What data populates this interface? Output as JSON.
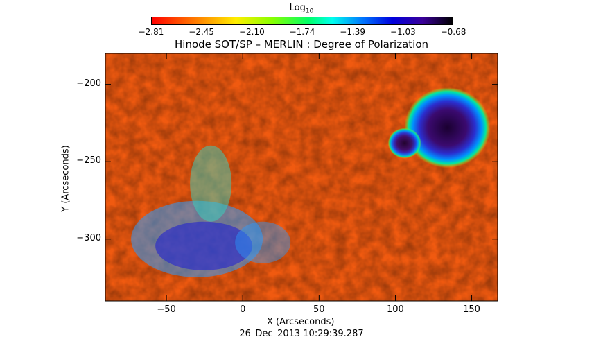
{
  "colorbar": {
    "title": "Log",
    "title_sub": "10",
    "ticks": [
      "−2.81",
      "−2.45",
      "−2.10",
      "−1.74",
      "−1.39",
      "−1.03",
      "−0.68"
    ]
  },
  "chart_data": {
    "type": "heatmap",
    "title": "Hinode SOT/SP – MERLIN : Degree of Polarization",
    "xlabel": "X (Arcseconds)",
    "ylabel": "Y (Arcseconds)",
    "xlim": [
      -90,
      167
    ],
    "ylim": [
      -340,
      -180
    ],
    "xticks": [
      -50,
      0,
      50,
      100,
      150
    ],
    "yticks": [
      -200,
      -250,
      -300
    ],
    "xtick_labels": [
      "−50",
      "0",
      "50",
      "100",
      "150"
    ],
    "ytick_labels": [
      "−200",
      "−250",
      "−300"
    ],
    "colorscale_range": [
      -2.81,
      -0.68
    ],
    "colorscale": "rainbow (red low → blue/black high)",
    "features": [
      {
        "kind": "sunspot umbra",
        "x": 134,
        "y": -228,
        "value": -0.68
      },
      {
        "kind": "pore",
        "x": 106,
        "y": -238,
        "value": -1.1
      },
      {
        "kind": "plage",
        "x": -30,
        "y": -300,
        "value": -1.3
      }
    ],
    "grid": false
  },
  "footer": {
    "date": "26–Dec–2013 10:29:39.287"
  }
}
